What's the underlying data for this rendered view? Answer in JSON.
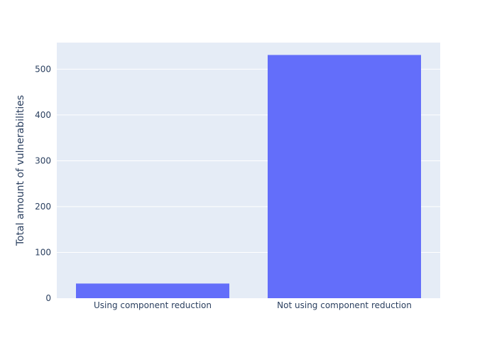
{
  "chart_data": {
    "type": "bar",
    "title": "",
    "xlabel": "",
    "ylabel": "Total amount of vulnerabilities",
    "categories": [
      "Using component reduction",
      "Not using component reduction"
    ],
    "values": [
      32,
      531
    ],
    "ylim": [
      0,
      558
    ],
    "yticks": [
      0,
      100,
      200,
      300,
      400,
      500
    ],
    "grid": true,
    "legend": "none"
  },
  "colors": {
    "plot_background": "#e5ecf6",
    "bar": "#636efa",
    "gridline": "#ffffff",
    "text": "#2a3f5f",
    "paper": "#ffffff"
  }
}
